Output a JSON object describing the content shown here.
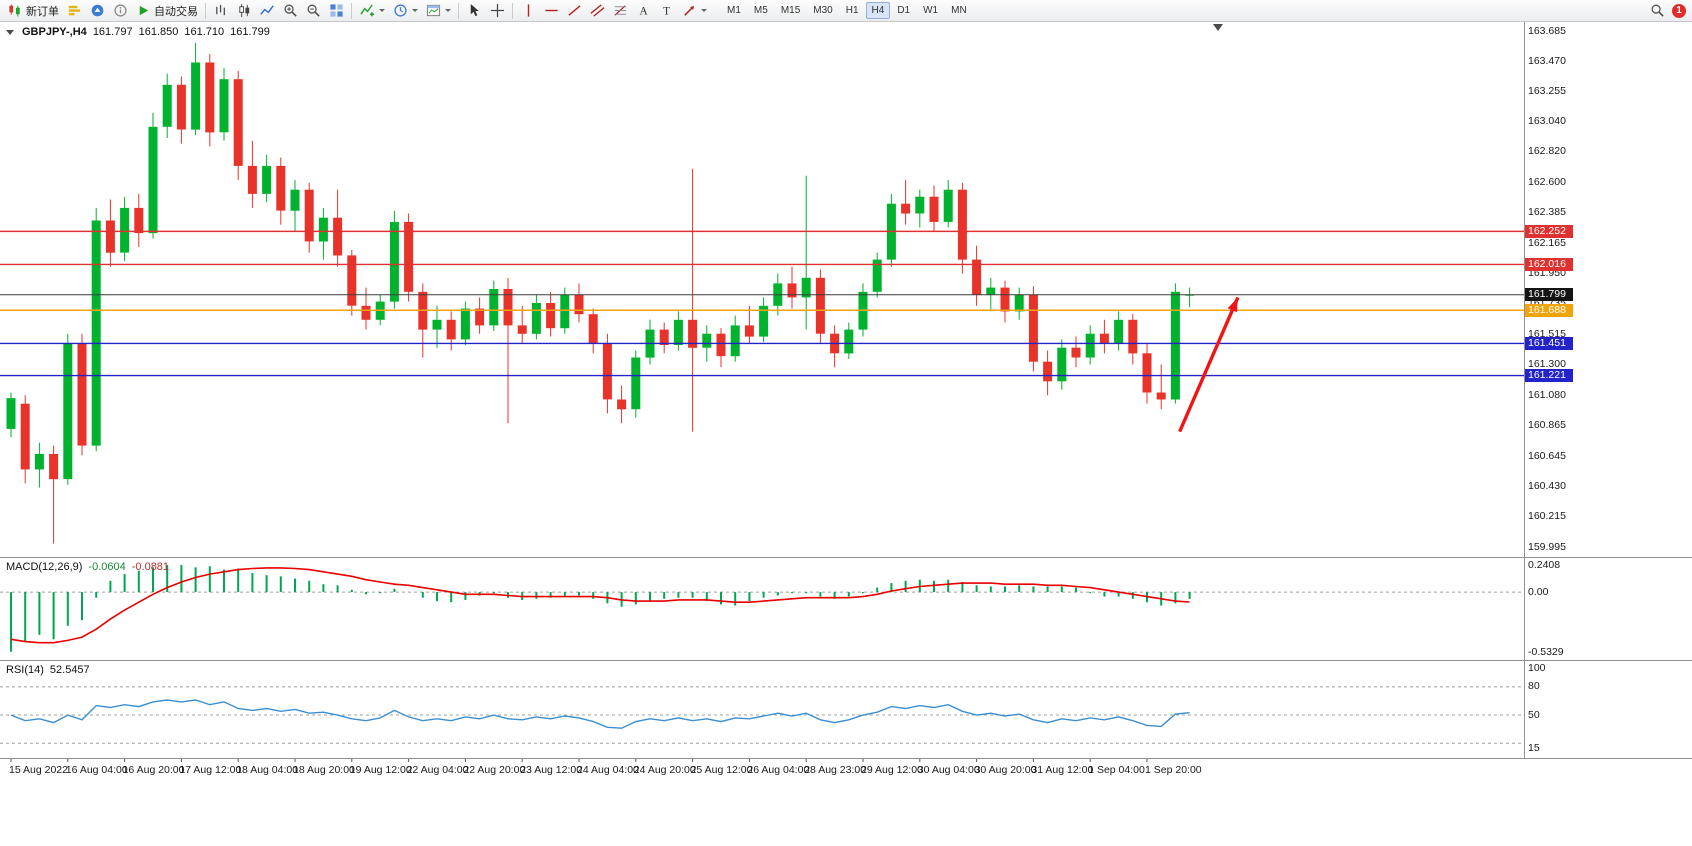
{
  "toolbar": {
    "new_order_label": "新订单",
    "algo_trading_label": "自动交易",
    "timeframes": [
      "M1",
      "M5",
      "M15",
      "M30",
      "H1",
      "H4",
      "D1",
      "W1",
      "MN"
    ],
    "active_timeframe": "H4",
    "notification_count": "1",
    "icons": [
      "new-order",
      "depth-of-market",
      "market-watch",
      "info",
      "algo-trading",
      "chart-bars",
      "chart-candles",
      "chart-line",
      "zoom-in",
      "zoom-out",
      "tile-windows",
      "indicators",
      "periods",
      "templates",
      "cursor",
      "crosshair",
      "vertical-line",
      "horizontal-line",
      "trendline",
      "equidistant-channel",
      "fibonacci",
      "text",
      "text-label",
      "arrows",
      "search",
      "notifications"
    ]
  },
  "chart": {
    "symbol_period": "GBPJPY-,H4",
    "open": "161.797",
    "high": "161.850",
    "low": "161.710",
    "close": "161.799"
  },
  "macd_label": {
    "name": "MACD(12,26,9)",
    "value": "-0.0604",
    "signal": "-0.0881"
  },
  "rsi_label": {
    "name": "RSI(14)",
    "value": "52.5457"
  },
  "chart_data": {
    "type": "candlestick",
    "symbol": "GBPJPY-",
    "timeframe": "H4",
    "colors": {
      "up": "#00b22d",
      "down": "#e8332a",
      "macd_hist": "#00a651",
      "macd_signal": "#e80000",
      "rsi": "#3d8fd1",
      "level_dash": "#a0a0a0",
      "bid": "#3c3c3c"
    },
    "price_axis": {
      "max": 163.685,
      "min": 159.995,
      "ticks": [
        "163.685",
        "163.470",
        "163.255",
        "163.040",
        "162.820",
        "162.600",
        "162.385",
        "162.165",
        "161.950",
        "161.735",
        "161.515",
        "161.300",
        "161.080",
        "160.865",
        "160.645",
        "160.430",
        "160.215",
        "159.995"
      ]
    },
    "candles": [
      [
        160.84,
        161.1,
        160.78,
        161.06
      ],
      [
        161.02,
        161.08,
        160.45,
        160.55
      ],
      [
        160.55,
        160.74,
        160.42,
        160.66
      ],
      [
        160.66,
        160.72,
        160.02,
        160.48
      ],
      [
        160.48,
        161.52,
        160.44,
        161.45
      ],
      [
        161.45,
        161.52,
        160.65,
        160.72
      ],
      [
        160.72,
        162.42,
        160.68,
        162.33
      ],
      [
        162.33,
        162.48,
        162.0,
        162.1
      ],
      [
        162.1,
        162.5,
        162.04,
        162.42
      ],
      [
        162.42,
        162.52,
        162.14,
        162.24
      ],
      [
        162.24,
        163.1,
        162.2,
        163.0
      ],
      [
        163.0,
        163.38,
        162.92,
        163.3
      ],
      [
        163.3,
        163.36,
        162.88,
        162.98
      ],
      [
        162.98,
        163.6,
        162.94,
        163.46
      ],
      [
        163.46,
        163.52,
        162.86,
        162.96
      ],
      [
        162.96,
        163.42,
        162.9,
        163.34
      ],
      [
        163.34,
        163.4,
        162.62,
        162.72
      ],
      [
        162.72,
        162.9,
        162.42,
        162.52
      ],
      [
        162.52,
        162.8,
        162.46,
        162.72
      ],
      [
        162.72,
        162.78,
        162.3,
        162.4
      ],
      [
        162.4,
        162.62,
        162.25,
        162.55
      ],
      [
        162.55,
        162.6,
        162.1,
        162.18
      ],
      [
        162.18,
        162.42,
        162.05,
        162.35
      ],
      [
        162.35,
        162.55,
        162.0,
        162.08
      ],
      [
        162.08,
        162.12,
        161.65,
        161.72
      ],
      [
        161.72,
        161.85,
        161.55,
        161.62
      ],
      [
        161.62,
        161.8,
        161.58,
        161.75
      ],
      [
        161.75,
        162.4,
        161.7,
        162.32
      ],
      [
        162.32,
        162.38,
        161.75,
        161.82
      ],
      [
        161.82,
        161.88,
        161.35,
        161.55
      ],
      [
        161.55,
        161.72,
        161.42,
        161.62
      ],
      [
        161.62,
        161.68,
        161.4,
        161.48
      ],
      [
        161.48,
        161.75,
        161.44,
        161.7
      ],
      [
        161.7,
        161.78,
        161.52,
        161.58
      ],
      [
        161.58,
        161.9,
        161.54,
        161.84
      ],
      [
        161.84,
        161.92,
        160.88,
        161.58
      ],
      [
        161.58,
        161.72,
        161.45,
        161.52
      ],
      [
        161.52,
        161.8,
        161.48,
        161.74
      ],
      [
        161.74,
        161.82,
        161.5,
        161.56
      ],
      [
        161.56,
        161.85,
        161.52,
        161.8
      ],
      [
        161.8,
        161.88,
        161.6,
        161.66
      ],
      [
        161.66,
        161.7,
        161.38,
        161.45
      ],
      [
        161.45,
        161.52,
        160.95,
        161.05
      ],
      [
        161.05,
        161.15,
        160.88,
        160.98
      ],
      [
        160.98,
        161.4,
        160.92,
        161.35
      ],
      [
        161.35,
        161.62,
        161.3,
        161.55
      ],
      [
        161.55,
        161.6,
        161.38,
        161.44
      ],
      [
        161.44,
        161.68,
        161.4,
        161.62
      ],
      [
        161.62,
        162.7,
        160.82,
        161.42
      ],
      [
        161.42,
        161.58,
        161.32,
        161.52
      ],
      [
        161.52,
        161.56,
        161.28,
        161.36
      ],
      [
        161.36,
        161.65,
        161.32,
        161.58
      ],
      [
        161.58,
        161.72,
        161.45,
        161.5
      ],
      [
        161.5,
        161.78,
        161.46,
        161.72
      ],
      [
        161.72,
        161.95,
        161.65,
        161.88
      ],
      [
        161.88,
        162.0,
        161.7,
        161.78
      ],
      [
        161.78,
        162.65,
        161.55,
        161.92
      ],
      [
        161.92,
        161.98,
        161.45,
        161.52
      ],
      [
        161.52,
        161.58,
        161.28,
        161.38
      ],
      [
        161.38,
        161.6,
        161.34,
        161.55
      ],
      [
        161.55,
        161.88,
        161.5,
        161.82
      ],
      [
        161.82,
        162.1,
        161.78,
        162.05
      ],
      [
        162.05,
        162.52,
        162.0,
        162.45
      ],
      [
        162.45,
        162.62,
        162.3,
        162.38
      ],
      [
        162.38,
        162.55,
        162.28,
        162.5
      ],
      [
        162.5,
        162.58,
        162.25,
        162.32
      ],
      [
        162.32,
        162.62,
        162.28,
        162.55
      ],
      [
        162.55,
        162.6,
        161.95,
        162.05
      ],
      [
        162.05,
        162.15,
        161.72,
        161.8
      ],
      [
        161.8,
        161.92,
        161.68,
        161.85
      ],
      [
        161.85,
        161.9,
        161.6,
        161.68
      ],
      [
        161.68,
        161.85,
        161.62,
        161.8
      ],
      [
        161.8,
        161.86,
        161.25,
        161.32
      ],
      [
        161.32,
        161.4,
        161.08,
        161.18
      ],
      [
        161.18,
        161.48,
        161.12,
        161.42
      ],
      [
        161.42,
        161.5,
        161.28,
        161.35
      ],
      [
        161.35,
        161.58,
        161.3,
        161.52
      ],
      [
        161.52,
        161.62,
        161.38,
        161.45
      ],
      [
        161.45,
        161.68,
        161.4,
        161.62
      ],
      [
        161.62,
        161.66,
        161.3,
        161.38
      ],
      [
        161.38,
        161.45,
        161.02,
        161.1
      ],
      [
        161.1,
        161.3,
        160.98,
        161.05
      ],
      [
        161.05,
        161.88,
        161.02,
        161.82
      ],
      [
        161.797,
        161.85,
        161.71,
        161.799
      ]
    ],
    "x_ticks": [
      {
        "i": 0,
        "label": "15 Aug 2022"
      },
      {
        "i": 4,
        "label": "16 Aug 04:00"
      },
      {
        "i": 8,
        "label": "16 Aug 20:00"
      },
      {
        "i": 12,
        "label": "17 Aug 12:00"
      },
      {
        "i": 16,
        "label": "18 Aug 04:00"
      },
      {
        "i": 20,
        "label": "18 Aug 20:00"
      },
      {
        "i": 24,
        "label": "19 Aug 12:00"
      },
      {
        "i": 28,
        "label": "22 Aug 04:00"
      },
      {
        "i": 32,
        "label": "22 Aug 20:00"
      },
      {
        "i": 36,
        "label": "23 Aug 12:00"
      },
      {
        "i": 40,
        "label": "24 Aug 04:00"
      },
      {
        "i": 44,
        "label": "24 Aug 20:00"
      },
      {
        "i": 48,
        "label": "25 Aug 12:00"
      },
      {
        "i": 52,
        "label": "26 Aug 04:00"
      },
      {
        "i": 56,
        "label": "28 Aug 23:00"
      },
      {
        "i": 60,
        "label": "29 Aug 12:00"
      },
      {
        "i": 64,
        "label": "30 Aug 04:00"
      },
      {
        "i": 68,
        "label": "30 Aug 20:00"
      },
      {
        "i": 72,
        "label": "31 Aug 12:00"
      },
      {
        "i": 76,
        "label": "1 Sep 04:00"
      },
      {
        "i": 80,
        "label": "1 Sep 20:00"
      }
    ],
    "hlines": [
      {
        "price": 162.252,
        "label": "162.252",
        "color": "#e03131"
      },
      {
        "price": 162.016,
        "label": "162.016",
        "color": "#e03131"
      },
      {
        "price": 161.688,
        "label": "161.688",
        "color": "#f0a30a"
      },
      {
        "price": 161.451,
        "label": "161.451",
        "color": "#2323cc"
      },
      {
        "price": 161.221,
        "label": "161.221",
        "color": "#2323cc"
      }
    ],
    "bid_line": {
      "price": 161.799,
      "label": "161.799",
      "color": "#3c3c3c",
      "badge_bg": "#141414"
    },
    "arrow": {
      "from_index": 82.3,
      "from_price": 160.82,
      "to_index": 86.4,
      "to_price": 161.78,
      "color": "#f01414"
    },
    "shift_marker_index": 85,
    "macd": {
      "axis": {
        "max": 0.2408,
        "min": -0.5329,
        "labels": [
          "0.2408",
          "0.00",
          "-0.5329"
        ],
        "label_values": [
          0.2408,
          0,
          -0.5329
        ]
      },
      "histogram": [
        -0.53,
        -0.44,
        -0.38,
        -0.42,
        -0.3,
        -0.25,
        -0.05,
        0.1,
        0.16,
        0.19,
        0.22,
        0.24,
        0.24,
        0.22,
        0.23,
        0.2,
        0.21,
        0.17,
        0.15,
        0.14,
        0.12,
        0.1,
        0.07,
        0.06,
        0.02,
        -0.02,
        -0.01,
        0.03,
        0,
        -0.05,
        -0.08,
        -0.09,
        -0.07,
        -0.03,
        -0.01,
        -0.05,
        -0.07,
        -0.06,
        -0.05,
        -0.04,
        -0.03,
        -0.06,
        -0.1,
        -0.13,
        -0.11,
        -0.08,
        -0.06,
        -0.05,
        -0.05,
        -0.08,
        -0.11,
        -0.12,
        -0.08,
        -0.05,
        -0.03,
        -0.01,
        -0.01,
        -0.04,
        -0.06,
        -0.04,
        -0.01,
        0.04,
        0.08,
        0.1,
        0.11,
        0.1,
        0.11,
        0.09,
        0.06,
        0.05,
        0.05,
        0.06,
        0.05,
        0.05,
        0.05,
        0.04,
        -0.01,
        -0.04,
        -0.04,
        -0.06,
        -0.09,
        -0.12,
        -0.1,
        -0.0604
      ],
      "signal": [
        -0.42,
        -0.44,
        -0.45,
        -0.45,
        -0.43,
        -0.4,
        -0.33,
        -0.24,
        -0.16,
        -0.09,
        -0.02,
        0.04,
        0.09,
        0.13,
        0.16,
        0.18,
        0.2,
        0.21,
        0.215,
        0.215,
        0.21,
        0.2,
        0.18,
        0.16,
        0.14,
        0.11,
        0.09,
        0.07,
        0.06,
        0.04,
        0.02,
        0,
        -0.02,
        -0.02,
        -0.02,
        -0.03,
        -0.04,
        -0.04,
        -0.04,
        -0.04,
        -0.04,
        -0.04,
        -0.05,
        -0.07,
        -0.08,
        -0.08,
        -0.08,
        -0.07,
        -0.07,
        -0.07,
        -0.08,
        -0.09,
        -0.09,
        -0.08,
        -0.07,
        -0.06,
        -0.05,
        -0.05,
        -0.05,
        -0.05,
        -0.04,
        -0.02,
        0.01,
        0.03,
        0.05,
        0.06,
        0.07,
        0.08,
        0.08,
        0.08,
        0.07,
        0.07,
        0.07,
        0.06,
        0.06,
        0.05,
        0.04,
        0.02,
        0,
        -0.02,
        -0.04,
        -0.06,
        -0.08,
        -0.0881
      ]
    },
    "rsi": {
      "axis": {
        "max": 100,
        "min": 15,
        "labels": [
          "100",
          "80",
          "50",
          "15"
        ],
        "label_values": [
          100,
          80,
          50,
          15
        ],
        "levels": [
          80,
          50,
          20
        ]
      },
      "series": [
        50,
        44,
        46,
        42,
        50,
        45,
        60,
        58,
        61,
        59,
        64,
        66,
        64,
        66,
        61,
        64,
        57,
        55,
        57,
        54,
        56,
        52,
        53,
        50,
        46,
        44,
        47,
        55,
        48,
        44,
        46,
        44,
        48,
        46,
        50,
        46,
        45,
        48,
        46,
        49,
        47,
        43,
        37,
        36,
        43,
        46,
        44,
        47,
        44,
        46,
        43,
        47,
        46,
        49,
        52,
        49,
        52,
        45,
        42,
        45,
        50,
        53,
        59,
        57,
        60,
        58,
        61,
        54,
        50,
        52,
        49,
        51,
        45,
        42,
        46,
        44,
        47,
        45,
        48,
        44,
        39,
        38,
        51,
        52.55
      ]
    }
  }
}
